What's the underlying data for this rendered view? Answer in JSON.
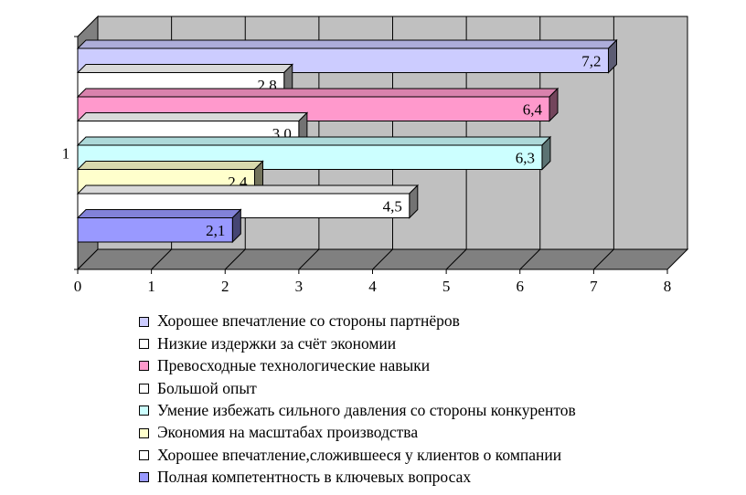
{
  "chart_data": {
    "type": "bar",
    "orientation": "horizontal",
    "three_d": true,
    "categories": [
      "1"
    ],
    "xlim": [
      0,
      8
    ],
    "x_ticks": [
      "0",
      "1",
      "2",
      "3",
      "4",
      "5",
      "6",
      "7",
      "8"
    ],
    "grid": true,
    "legend_position": "bottom",
    "series": [
      {
        "name": "Хорошее впечатление со стороны партнёров",
        "value": 7.2,
        "label": "7,2",
        "color": "#ccccff"
      },
      {
        "name": "Низкие издержки за счёт экономии",
        "value": 2.8,
        "label": "2,8",
        "color": "#ffffff"
      },
      {
        "name": "Превосходные технологические навыки",
        "value": 6.4,
        "label": "6,4",
        "color": "#ff99cc"
      },
      {
        "name": "Большой опыт",
        "value": 3.0,
        "label": "3,0",
        "color": "#ffffff"
      },
      {
        "name": "Умение избежать сильного давления со стороны конкурентов",
        "value": 6.3,
        "label": "6,3",
        "color": "#ccffff"
      },
      {
        "name": "Экономия на масштабах производства",
        "value": 2.4,
        "label": "2,4",
        "color": "#ffffcc"
      },
      {
        "name": "Хорошее впечатление,сложившееся у клиентов о компании",
        "value": 4.5,
        "label": "4,5",
        "color": "#ffffff"
      },
      {
        "name": "Полная компетентность в ключевых вопросах",
        "value": 2.1,
        "label": "2,1",
        "color": "#9999ff"
      }
    ]
  }
}
